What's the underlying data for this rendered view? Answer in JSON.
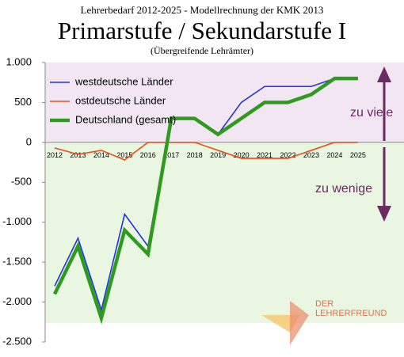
{
  "chart_data": {
    "type": "line",
    "title": "Primarstufe / Sekundarstufe I",
    "supertitle": "Lehrerbedarf 2012-2025 - Modellrechnung der KMK 2013",
    "subtitle": "(Übergreifende Lehrämter)",
    "categories": [
      "2012",
      "2013",
      "2014",
      "2015",
      "2016",
      "2017",
      "2018",
      "2019",
      "2020",
      "2021",
      "2022",
      "2023",
      "2024",
      "2025"
    ],
    "series": [
      {
        "name": "westdeutsche Länder",
        "color": "#2233dd",
        "width": 1.6,
        "values": [
          -1800,
          -1200,
          -2100,
          -900,
          -1300,
          300,
          300,
          100,
          500,
          700,
          700,
          700,
          800,
          800
        ]
      },
      {
        "name": "ostdeutsche Länder",
        "color": "#e8501a",
        "width": 1.6,
        "values": [
          -70,
          -150,
          -100,
          -220,
          0,
          0,
          0,
          -100,
          -200,
          -200,
          -200,
          -100,
          0,
          0
        ]
      },
      {
        "name": "Deutschland (gesamt)",
        "color": "#2e9a1e",
        "width": 4.5,
        "values": [
          -1900,
          -1300,
          -2200,
          -1100,
          -1400,
          300,
          300,
          100,
          300,
          500,
          500,
          600,
          800,
          800
        ]
      }
    ],
    "ylim": [
      -2500,
      1000
    ],
    "yticks": [
      {
        "value": -2500,
        "label": "-2.500"
      },
      {
        "value": -2000,
        "label": "-2.000"
      },
      {
        "value": -1500,
        "label": "-1.500"
      },
      {
        "value": -1000,
        "label": "-1.000"
      },
      -500,
      0,
      500,
      {
        "value": 1000,
        "label": "1.000"
      }
    ],
    "annotations": [
      "zu viele",
      "zu wenige"
    ],
    "logo": [
      "DER",
      "LEHRERFREUND"
    ],
    "legend": "upper left"
  }
}
